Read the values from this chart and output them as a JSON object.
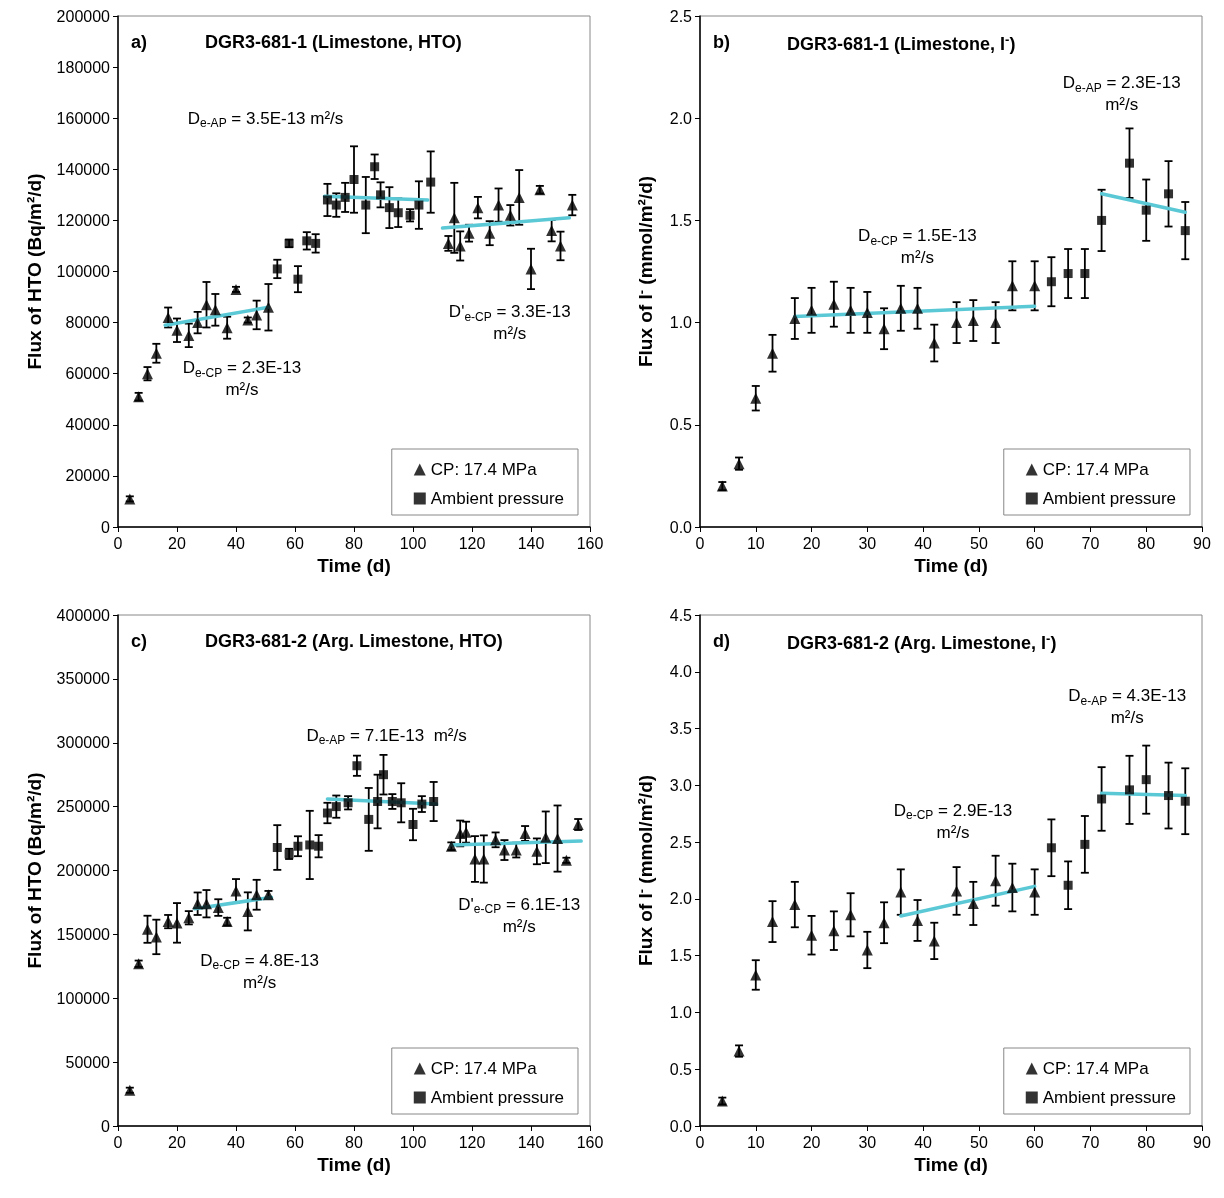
{
  "chart_data": [
    {
      "type": "scatter",
      "title": "DGR3-681-1 (Limestone, HTO)",
      "xlabel": "Time (d)",
      "ylabel": "Flux of HTO (Bq/m²/d)",
      "xlim": [
        0,
        160
      ],
      "xticks": [
        0,
        20,
        40,
        60,
        80,
        100,
        120,
        140,
        160
      ],
      "ylim": [
        0,
        200000
      ],
      "yticks": [
        0,
        20000,
        40000,
        60000,
        80000,
        100000,
        120000,
        140000,
        160000,
        180000,
        200000
      ],
      "legend": "bottom right",
      "annotations": [
        "a)",
        "D$_{e-AP}$ = 3.5E-13 m²/s",
        "D$_{e-CP}$ = 2.3E-13\nm²/s",
        "D'$_{e-CP}$ = 3.3E-13\nm²/s"
      ],
      "series": [
        {
          "name": "CP: 17.4 MPa",
          "color": "#000000",
          "marker": "triangle",
          "x": [
            4,
            7,
            10,
            13,
            17,
            20,
            24,
            27,
            30,
            33,
            37,
            40,
            44,
            47,
            51,
            112,
            114,
            116,
            119,
            122,
            126,
            129,
            133,
            136,
            140,
            143,
            147,
            150,
            154
          ],
          "values": [
            11000,
            51000,
            60000,
            68000,
            82000,
            77000,
            75000,
            80000,
            87000,
            85000,
            78000,
            93000,
            81000,
            83000,
            86000,
            111000,
            121000,
            110000,
            115000,
            125000,
            115000,
            126000,
            122000,
            129000,
            101000,
            132000,
            116000,
            110000,
            126000
          ],
          "errors": [
            1000,
            1500,
            2600,
            3700,
            3900,
            4600,
            4600,
            4200,
            8900,
            6200,
            4300,
            1000,
            1000,
            5600,
            9100,
            2900,
            13700,
            5700,
            3300,
            4200,
            4700,
            6500,
            4000,
            10700,
            7900,
            1500,
            4200,
            5600,
            4000
          ]
        },
        {
          "name": "Ambient pressure",
          "color": "#000000",
          "marker": "square",
          "x": [
            54,
            58,
            61,
            64,
            67,
            71,
            74,
            77,
            80,
            84,
            87,
            89,
            92,
            95,
            99,
            102,
            106
          ],
          "values": [
            101000,
            111000,
            97000,
            112000,
            111000,
            128000,
            126000,
            129000,
            136000,
            126000,
            141000,
            130000,
            125000,
            123000,
            122000,
            126000,
            135000
          ],
          "errors": [
            3600,
            1500,
            5100,
            3400,
            3600,
            6300,
            4600,
            5700,
            13000,
            11000,
            4800,
            4900,
            8000,
            5600,
            2400,
            9300,
            12000
          ]
        },
        {
          "type": "line",
          "color": "#5bc8d6",
          "marker": "none",
          "x": [
            16,
            51
          ],
          "values": [
            79000,
            86000
          ]
        },
        {
          "type": "line",
          "color": "#5bc8d6",
          "marker": "none",
          "x": [
            70,
            105
          ],
          "values": [
            129500,
            128000
          ]
        },
        {
          "type": "line",
          "color": "#5bc8d6",
          "marker": "none",
          "x": [
            110,
            153
          ],
          "values": [
            117000,
            121000
          ]
        }
      ]
    },
    {
      "type": "scatter",
      "title": "DGR3-681-1 (Limestone, I$^{-}$)",
      "xlabel": "Time (d)",
      "ylabel": "Flux of I$^{-}$ (mmol/m²/d)",
      "xlim": [
        0,
        90
      ],
      "xticks": [
        0,
        10,
        20,
        30,
        40,
        50,
        60,
        70,
        80,
        90
      ],
      "ylim": [
        0,
        2.5
      ],
      "yticks": [
        {
          "value": 0,
          "label": "0.0"
        },
        0.5,
        {
          "value": 1,
          "label": "1.0"
        },
        1.5,
        {
          "value": 2,
          "label": "2.0"
        },
        2.5
      ],
      "legend": "bottom right",
      "annotations": [
        "b)",
        "D$_{e-AP}$ = 2.3E-13\nm²/s",
        "D$_{e-CP}$ = 1.5E-13\nm²/s"
      ],
      "series": [
        {
          "name": "CP: 17.4 MPa",
          "color": "#000000",
          "marker": "triangle",
          "x": [
            4,
            7,
            10,
            13,
            17,
            20,
            24,
            27,
            30,
            33,
            36,
            39,
            42,
            46,
            49,
            53,
            56,
            60
          ],
          "values": [
            0.2,
            0.31,
            0.63,
            0.85,
            1.02,
            1.06,
            1.09,
            1.06,
            1.05,
            0.97,
            1.07,
            1.07,
            0.9,
            1.0,
            1.01,
            1.0,
            1.18,
            1.18
          ],
          "errors": [
            0.02,
            0.03,
            0.06,
            0.09,
            0.1,
            0.11,
            0.11,
            0.11,
            0.1,
            0.1,
            0.11,
            0.1,
            0.09,
            0.1,
            0.1,
            0.1,
            0.12,
            0.12
          ]
        },
        {
          "name": "Ambient pressure",
          "color": "#000000",
          "marker": "square",
          "x": [
            63,
            66,
            69,
            72,
            77,
            80,
            84,
            87
          ],
          "values": [
            1.2,
            1.24,
            1.24,
            1.5,
            1.78,
            1.55,
            1.63,
            1.45
          ],
          "errors": [
            0.12,
            0.12,
            0.12,
            0.15,
            0.17,
            0.15,
            0.16,
            0.14
          ]
        },
        {
          "type": "line",
          "color": "#5bc8d6",
          "marker": "none",
          "x": [
            17,
            60
          ],
          "values": [
            1.03,
            1.08
          ]
        },
        {
          "type": "line",
          "color": "#5bc8d6",
          "marker": "none",
          "x": [
            72,
            87
          ],
          "values": [
            1.63,
            1.54
          ]
        }
      ]
    },
    {
      "type": "scatter",
      "title": "DGR3-681-2 (Arg. Limestone, HTO)",
      "xlabel": "Time (d)",
      "ylabel": "Flux of HTO (Bq/m²/d)",
      "xlim": [
        0,
        160
      ],
      "xticks": [
        0,
        20,
        40,
        60,
        80,
        100,
        120,
        140,
        160
      ],
      "ylim": [
        0,
        400000
      ],
      "yticks": [
        0,
        50000,
        100000,
        150000,
        200000,
        250000,
        300000,
        350000,
        400000
      ],
      "legend": "bottom right",
      "annotations": [
        "c)",
        "D$_{e-AP}$ = 7.1E-13  m²/s",
        "D$_{e-CP}$ = 4.8E-13\nm²/s",
        "D'$_{e-CP}$ = 6.1E-13\nm²/s"
      ],
      "series": [
        {
          "name": "CP: 17.4 MPa",
          "color": "#000000",
          "marker": "triangle",
          "x": [
            4,
            7,
            10,
            13,
            17,
            20,
            24,
            27,
            30,
            34,
            37,
            40,
            44,
            47,
            51,
            113,
            116,
            118,
            121,
            124,
            128,
            131,
            135,
            138,
            142,
            145,
            149,
            152,
            156
          ],
          "values": [
            28000,
            127000,
            154000,
            148000,
            160000,
            159000,
            163000,
            174000,
            174000,
            171000,
            160000,
            184000,
            168000,
            181000,
            181000,
            219000,
            229000,
            230000,
            209000,
            209000,
            224000,
            216000,
            216000,
            229000,
            215000,
            226000,
            225000,
            208000,
            236000
          ],
          "errors": [
            2000,
            2500,
            10600,
            13500,
            5200,
            15500,
            5200,
            8800,
            10700,
            6500,
            3000,
            9300,
            14900,
            11700,
            3000,
            3000,
            10100,
            8200,
            17900,
            18500,
            5800,
            7800,
            5800,
            5800,
            10100,
            20200,
            25900,
            2000,
            4300
          ]
        },
        {
          "name": "Ambient pressure",
          "color": "#000000",
          "marker": "square",
          "x": [
            54,
            58,
            61,
            65,
            68,
            71,
            74,
            78,
            81,
            85,
            88,
            90,
            93,
            96,
            100,
            103,
            107
          ],
          "values": [
            218000,
            213000,
            219000,
            220000,
            219000,
            245000,
            250000,
            253000,
            282000,
            240000,
            254000,
            275000,
            254000,
            253000,
            236000,
            252000,
            254000
          ],
          "errors": [
            17500,
            4000,
            7800,
            26700,
            8700,
            8000,
            8700,
            5200,
            7900,
            24600,
            21000,
            15500,
            5800,
            15300,
            12300,
            6200,
            15300
          ]
        },
        {
          "type": "line",
          "color": "#5bc8d6",
          "marker": "none",
          "x": [
            26,
            52
          ],
          "values": [
            170000,
            179000
          ]
        },
        {
          "type": "line",
          "color": "#5bc8d6",
          "marker": "none",
          "x": [
            71,
            108
          ],
          "values": [
            256000,
            252000
          ]
        },
        {
          "type": "line",
          "color": "#5bc8d6",
          "marker": "none",
          "x": [
            113,
            157
          ],
          "values": [
            220000,
            223000
          ]
        }
      ]
    },
    {
      "type": "scatter",
      "title": "DGR3-681-2 (Arg. Limestone, I$^{-}$)",
      "xlabel": "Time (d)",
      "ylabel": "Flux of I$^{-}$ (mmol/m²/d)",
      "xlim": [
        0,
        90
      ],
      "xticks": [
        0,
        10,
        20,
        30,
        40,
        50,
        60,
        70,
        80,
        90
      ],
      "ylim": [
        0,
        4.5
      ],
      "yticks": [
        {
          "value": 0,
          "label": "0.0"
        },
        0.5,
        {
          "value": 1,
          "label": "1.0"
        },
        1.5,
        {
          "value": 2,
          "label": "2.0"
        },
        2.5,
        {
          "value": 3,
          "label": "3.0"
        },
        3.5,
        {
          "value": 4,
          "label": "4.0"
        },
        4.5
      ],
      "legend": "bottom right",
      "annotations": [
        "d)",
        "D$_{e-AP}$ = 4.3E-13\nm²/s",
        "D$_{e-CP}$ = 2.9E-13\nm²/s"
      ],
      "series": [
        {
          "name": "CP: 17.4 MPa",
          "color": "#000000",
          "marker": "triangle",
          "x": [
            4,
            7,
            10,
            13,
            17,
            20,
            24,
            27,
            30,
            33,
            36,
            39,
            42,
            46,
            49,
            53,
            56,
            60
          ],
          "values": [
            0.22,
            0.66,
            1.33,
            1.8,
            1.95,
            1.68,
            1.72,
            1.86,
            1.55,
            1.79,
            2.06,
            1.81,
            1.63,
            2.07,
            1.96,
            2.16,
            2.1,
            2.06
          ],
          "errors": [
            0.03,
            0.05,
            0.13,
            0.18,
            0.2,
            0.17,
            0.17,
            0.19,
            0.16,
            0.18,
            0.2,
            0.18,
            0.16,
            0.21,
            0.19,
            0.22,
            0.21,
            0.2
          ]
        },
        {
          "name": "Ambient pressure",
          "color": "#000000",
          "marker": "square",
          "x": [
            63,
            66,
            69,
            72,
            77,
            80,
            84,
            87
          ],
          "values": [
            2.45,
            2.12,
            2.48,
            2.88,
            2.96,
            3.05,
            2.91,
            2.86
          ],
          "errors": [
            0.25,
            0.21,
            0.25,
            0.28,
            0.3,
            0.3,
            0.29,
            0.29
          ]
        },
        {
          "type": "line",
          "color": "#5bc8d6",
          "marker": "none",
          "x": [
            36,
            60
          ],
          "values": [
            1.85,
            2.11
          ]
        },
        {
          "type": "line",
          "color": "#5bc8d6",
          "marker": "none",
          "x": [
            72,
            87
          ],
          "values": [
            2.93,
            2.91
          ]
        }
      ]
    }
  ]
}
